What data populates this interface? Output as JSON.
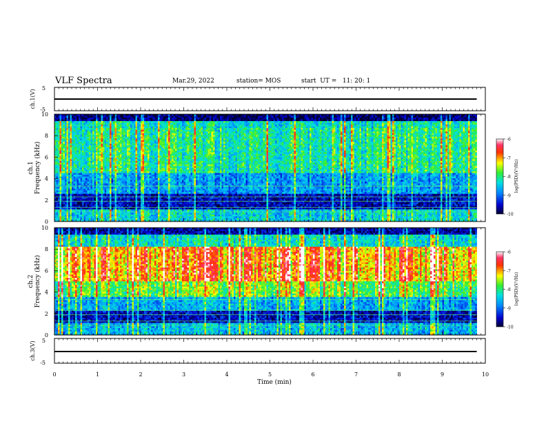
{
  "header": {
    "title": "VLF Spectra",
    "date": "Mar.29, 2022",
    "station": "station= MOS",
    "start": "start  UT =   11: 20: 1"
  },
  "chart_data": [
    {
      "type": "line",
      "panel": "ch1-voltage",
      "ylabel": "ch.1(V)",
      "ylim": [
        -5,
        5
      ],
      "yticks": [
        "5",
        "-5"
      ],
      "xlim": [
        0,
        10
      ],
      "series": [
        {
          "x": [
            0,
            9.8
          ],
          "y": [
            0,
            0
          ]
        }
      ]
    },
    {
      "type": "heatmap",
      "panel": "ch1-spectrogram",
      "ylabel_top": "ch.1",
      "ylabel": "Frequency (kHz)",
      "ylim": [
        0,
        10
      ],
      "yticks": [
        "0",
        "2",
        "4",
        "6",
        "8",
        "10"
      ],
      "xlim": [
        0,
        10
      ],
      "data_end_min": 9.8,
      "colorbar": {
        "ticks": [
          "-6",
          "-7",
          "-8",
          "-9",
          "-10"
        ],
        "label": "log(PSD)(V²/Hz)"
      }
    },
    {
      "type": "heatmap",
      "panel": "ch2-spectrogram",
      "ylabel_top": "ch.2",
      "ylabel": "Frequency (kHz)",
      "ylim": [
        0,
        10
      ],
      "yticks": [
        "0",
        "2",
        "4",
        "6",
        "8",
        "10"
      ],
      "xlim": [
        0,
        10
      ],
      "data_end_min": 9.8,
      "colorbar": {
        "ticks": [
          "-6",
          "-7",
          "-8",
          "-9",
          "-10"
        ],
        "label": "log(PSD)(V²/Hz)"
      }
    },
    {
      "type": "line",
      "panel": "ch3-voltage",
      "ylabel": "ch.3(V)",
      "ylim": [
        -5,
        5
      ],
      "yticks": [
        "5",
        "-5"
      ],
      "xlim": [
        0,
        10
      ],
      "series": [
        {
          "x": [
            0,
            9.8
          ],
          "y": [
            0,
            0
          ]
        }
      ]
    }
  ],
  "xaxis": {
    "label": "Time (min)",
    "ticks": [
      "0",
      "1",
      "2",
      "3",
      "4",
      "5",
      "6",
      "7",
      "8",
      "9",
      "10"
    ]
  }
}
